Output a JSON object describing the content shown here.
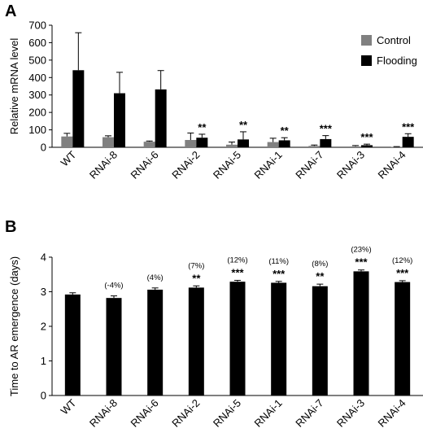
{
  "colors": {
    "control": "#808080",
    "flooding": "#000000",
    "bar_b": "#000000"
  },
  "chart_data": [
    {
      "panel": "A",
      "type": "bar",
      "ylabel": "Relative mRNA level",
      "ylim": [
        0,
        700
      ],
      "yticks": [
        0,
        100,
        200,
        300,
        400,
        500,
        600,
        700
      ],
      "categories": [
        "WT",
        "RNAi-8",
        "RNAi-6",
        "RNAi-2",
        "RNAi-5",
        "RNAi-1",
        "RNAi-7",
        "RNAi-3",
        "RNAi-4"
      ],
      "legend_position": "top-right",
      "series": [
        {
          "name": "Control",
          "values": [
            62,
            58,
            32,
            42,
            15,
            30,
            8,
            5,
            2
          ],
          "errors": [
            18,
            8,
            4,
            40,
            15,
            22,
            5,
            5,
            2
          ]
        },
        {
          "name": "Flooding",
          "values": [
            442,
            310,
            332,
            55,
            45,
            40,
            47,
            12,
            60
          ],
          "errors": [
            215,
            120,
            108,
            20,
            44,
            15,
            20,
            6,
            18
          ]
        }
      ],
      "significance": [
        "",
        "",
        "",
        "**",
        "**",
        "**",
        "***",
        "***",
        "***"
      ]
    },
    {
      "panel": "B",
      "type": "bar",
      "ylabel": "Time to AR emergence (days)",
      "ylim": [
        0,
        4
      ],
      "yticks": [
        0,
        1,
        2,
        3,
        4
      ],
      "categories": [
        "WT",
        "RNAi-8",
        "RNAi-6",
        "RNAi-2",
        "RNAi-5",
        "RNAi-1",
        "RNAi-7",
        "RNAi-3",
        "RNAi-4"
      ],
      "values": [
        2.92,
        2.82,
        3.06,
        3.12,
        3.29,
        3.26,
        3.16,
        3.59,
        3.28
      ],
      "errors": [
        0.05,
        0.06,
        0.05,
        0.05,
        0.04,
        0.04,
        0.06,
        0.04,
        0.04
      ],
      "percent_labels": [
        "",
        "(-4%)",
        "(4%)",
        "(7%)",
        "(12%)",
        "(11%)",
        "(8%)",
        "(23%)",
        "(12%)"
      ],
      "significance": [
        "",
        "",
        "",
        "**",
        "***",
        "***",
        "**",
        "***",
        "***"
      ]
    }
  ]
}
